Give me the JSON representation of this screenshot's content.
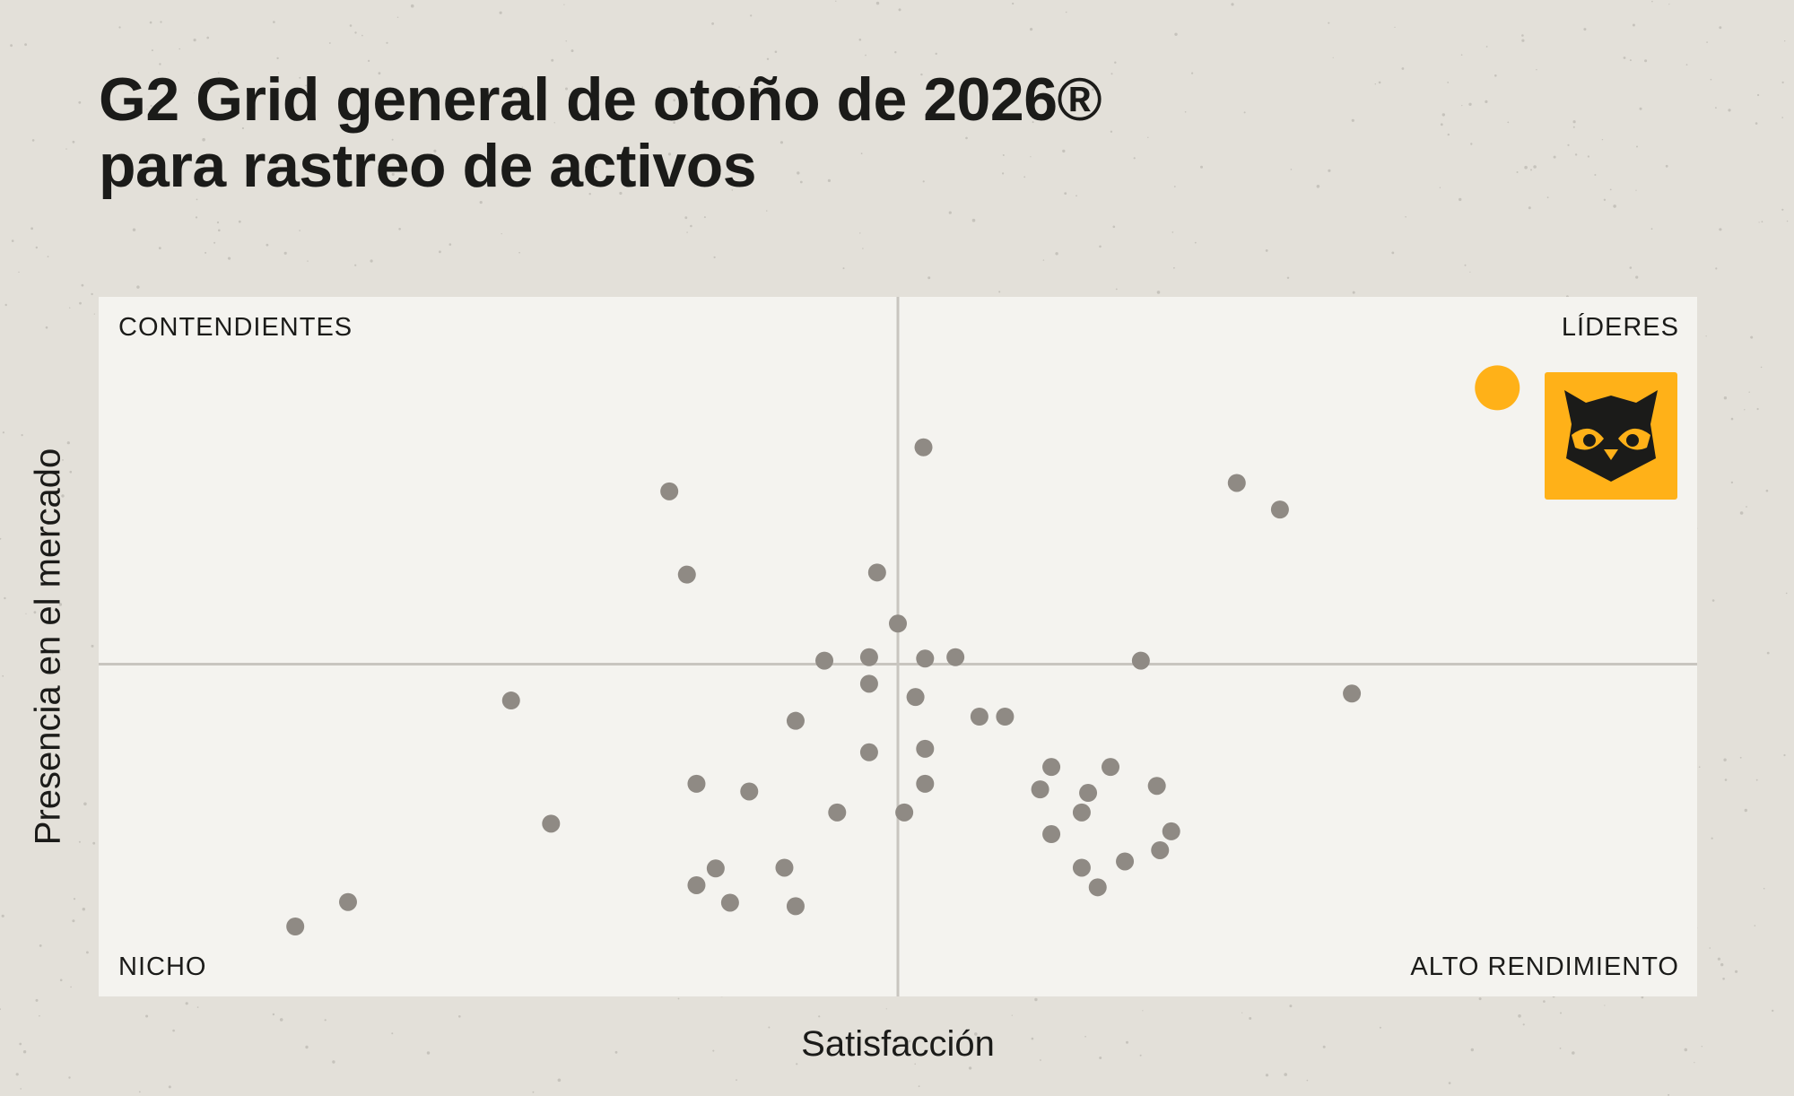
{
  "title_lines": [
    "G2 Grid general de otoño de 2026®",
    "para rastreo de activos"
  ],
  "quadrants": {
    "top_left": "CONTENDIENTES",
    "top_right": "LÍDERES",
    "bottom_left": "NICHO",
    "bottom_right": "ALTO RENDIMIENTO"
  },
  "colors": {
    "background": "#e3e0d9",
    "plot_background": "#f4f3ef",
    "dots": "#8f8a84",
    "highlight": "#ffb118",
    "divider": "#c8c5bf"
  },
  "chart_data": {
    "type": "scatter",
    "title": "G2 Grid general de otoño de 2026® para rastreo de activos",
    "xlabel": "Satisfacción",
    "ylabel": "Presencia en el mercado",
    "xlim": [
      0,
      100
    ],
    "ylim": [
      0,
      100
    ],
    "dividers": {
      "x": 50,
      "y": 47.5
    },
    "grid": false,
    "highlight": {
      "x": 87.5,
      "y": 87,
      "logo": "owl-logo"
    },
    "points": [
      [
        51.6,
        78.5
      ],
      [
        35.7,
        72.2
      ],
      [
        36.8,
        60.3
      ],
      [
        48.7,
        60.6
      ],
      [
        50,
        53.3
      ],
      [
        45.4,
        48
      ],
      [
        48.2,
        48.5
      ],
      [
        51.7,
        48.3
      ],
      [
        53.6,
        48.5
      ],
      [
        65.2,
        48
      ],
      [
        48.2,
        44.7
      ],
      [
        51.1,
        42.8
      ],
      [
        25.8,
        42.3
      ],
      [
        78.4,
        43.3
      ],
      [
        43.6,
        39.4
      ],
      [
        55.1,
        40
      ],
      [
        56.7,
        40
      ],
      [
        51.7,
        35.4
      ],
      [
        48.2,
        34.9
      ],
      [
        59.6,
        32.8
      ],
      [
        63.3,
        32.8
      ],
      [
        66.2,
        30.1
      ],
      [
        37.4,
        30.4
      ],
      [
        40.7,
        29.3
      ],
      [
        51.7,
        30.4
      ],
      [
        58.9,
        29.6
      ],
      [
        61.9,
        29.1
      ],
      [
        28.3,
        24.7
      ],
      [
        46.2,
        26.3
      ],
      [
        50.4,
        26.3
      ],
      [
        61.5,
        26.3
      ],
      [
        59.6,
        23.2
      ],
      [
        67.1,
        23.6
      ],
      [
        66.4,
        20.9
      ],
      [
        64.2,
        19.3
      ],
      [
        38.6,
        18.3
      ],
      [
        42.9,
        18.4
      ],
      [
        61.5,
        18.4
      ],
      [
        37.4,
        15.9
      ],
      [
        62.5,
        15.6
      ],
      [
        15.6,
        13.5
      ],
      [
        39.5,
        13.4
      ],
      [
        43.6,
        12.9
      ],
      [
        12.3,
        10
      ],
      [
        71.2,
        73.4
      ],
      [
        73.9,
        69.6
      ]
    ]
  }
}
